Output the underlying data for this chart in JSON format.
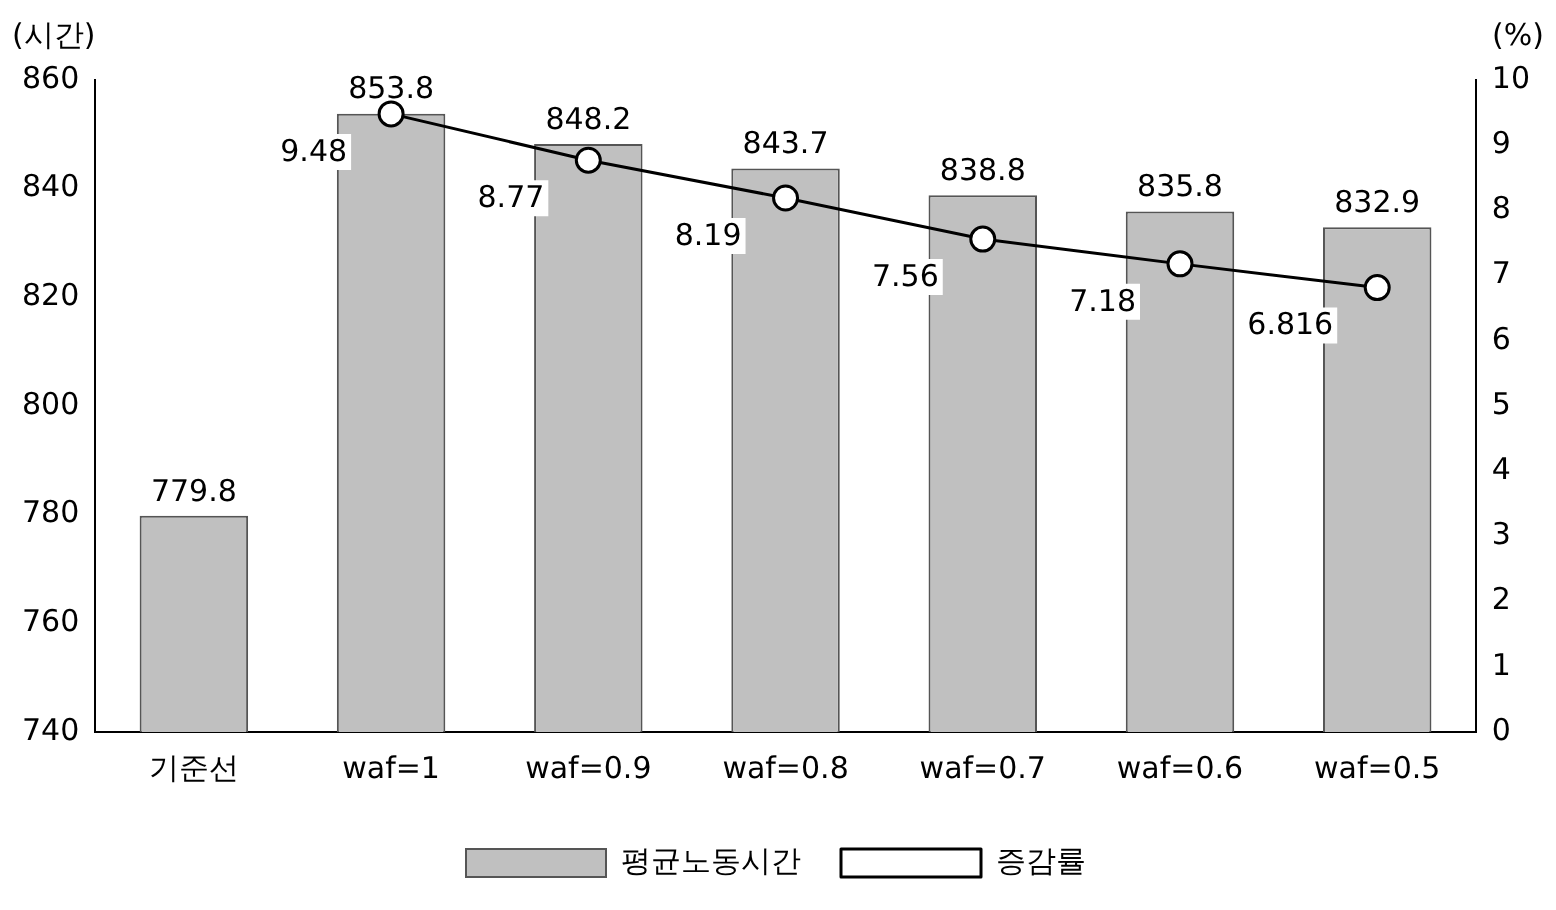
{
  "chart_data": {
    "type": "bar",
    "ylabel": "(시간)",
    "y2label": "(%)",
    "categories": [
      "기준선",
      "waf=1",
      "waf=0.9",
      "waf=0.8",
      "waf=0.7",
      "waf=0.6",
      "waf=0.5"
    ],
    "series": [
      {
        "name": "평균노동시간",
        "color": "#c0c0c0",
        "values": [
          779.8,
          853.8,
          848.2,
          843.7,
          838.8,
          835.8,
          832.9
        ]
      },
      {
        "name": "증감률",
        "type": "line",
        "axis": "y2",
        "color": "#000000",
        "marker": "circle",
        "values": [
          null,
          9.48,
          8.77,
          8.19,
          7.56,
          7.18,
          6.816
        ]
      }
    ],
    "ylim": [
      740,
      860
    ],
    "yticks": [
      740,
      760,
      780,
      800,
      820,
      840,
      860
    ],
    "y2lim": [
      0,
      10
    ],
    "y2ticks": [
      0,
      1,
      2,
      3,
      4,
      5,
      6,
      7,
      8,
      9,
      10
    ],
    "grid": false,
    "legend": "bottom",
    "data_labels": true
  }
}
